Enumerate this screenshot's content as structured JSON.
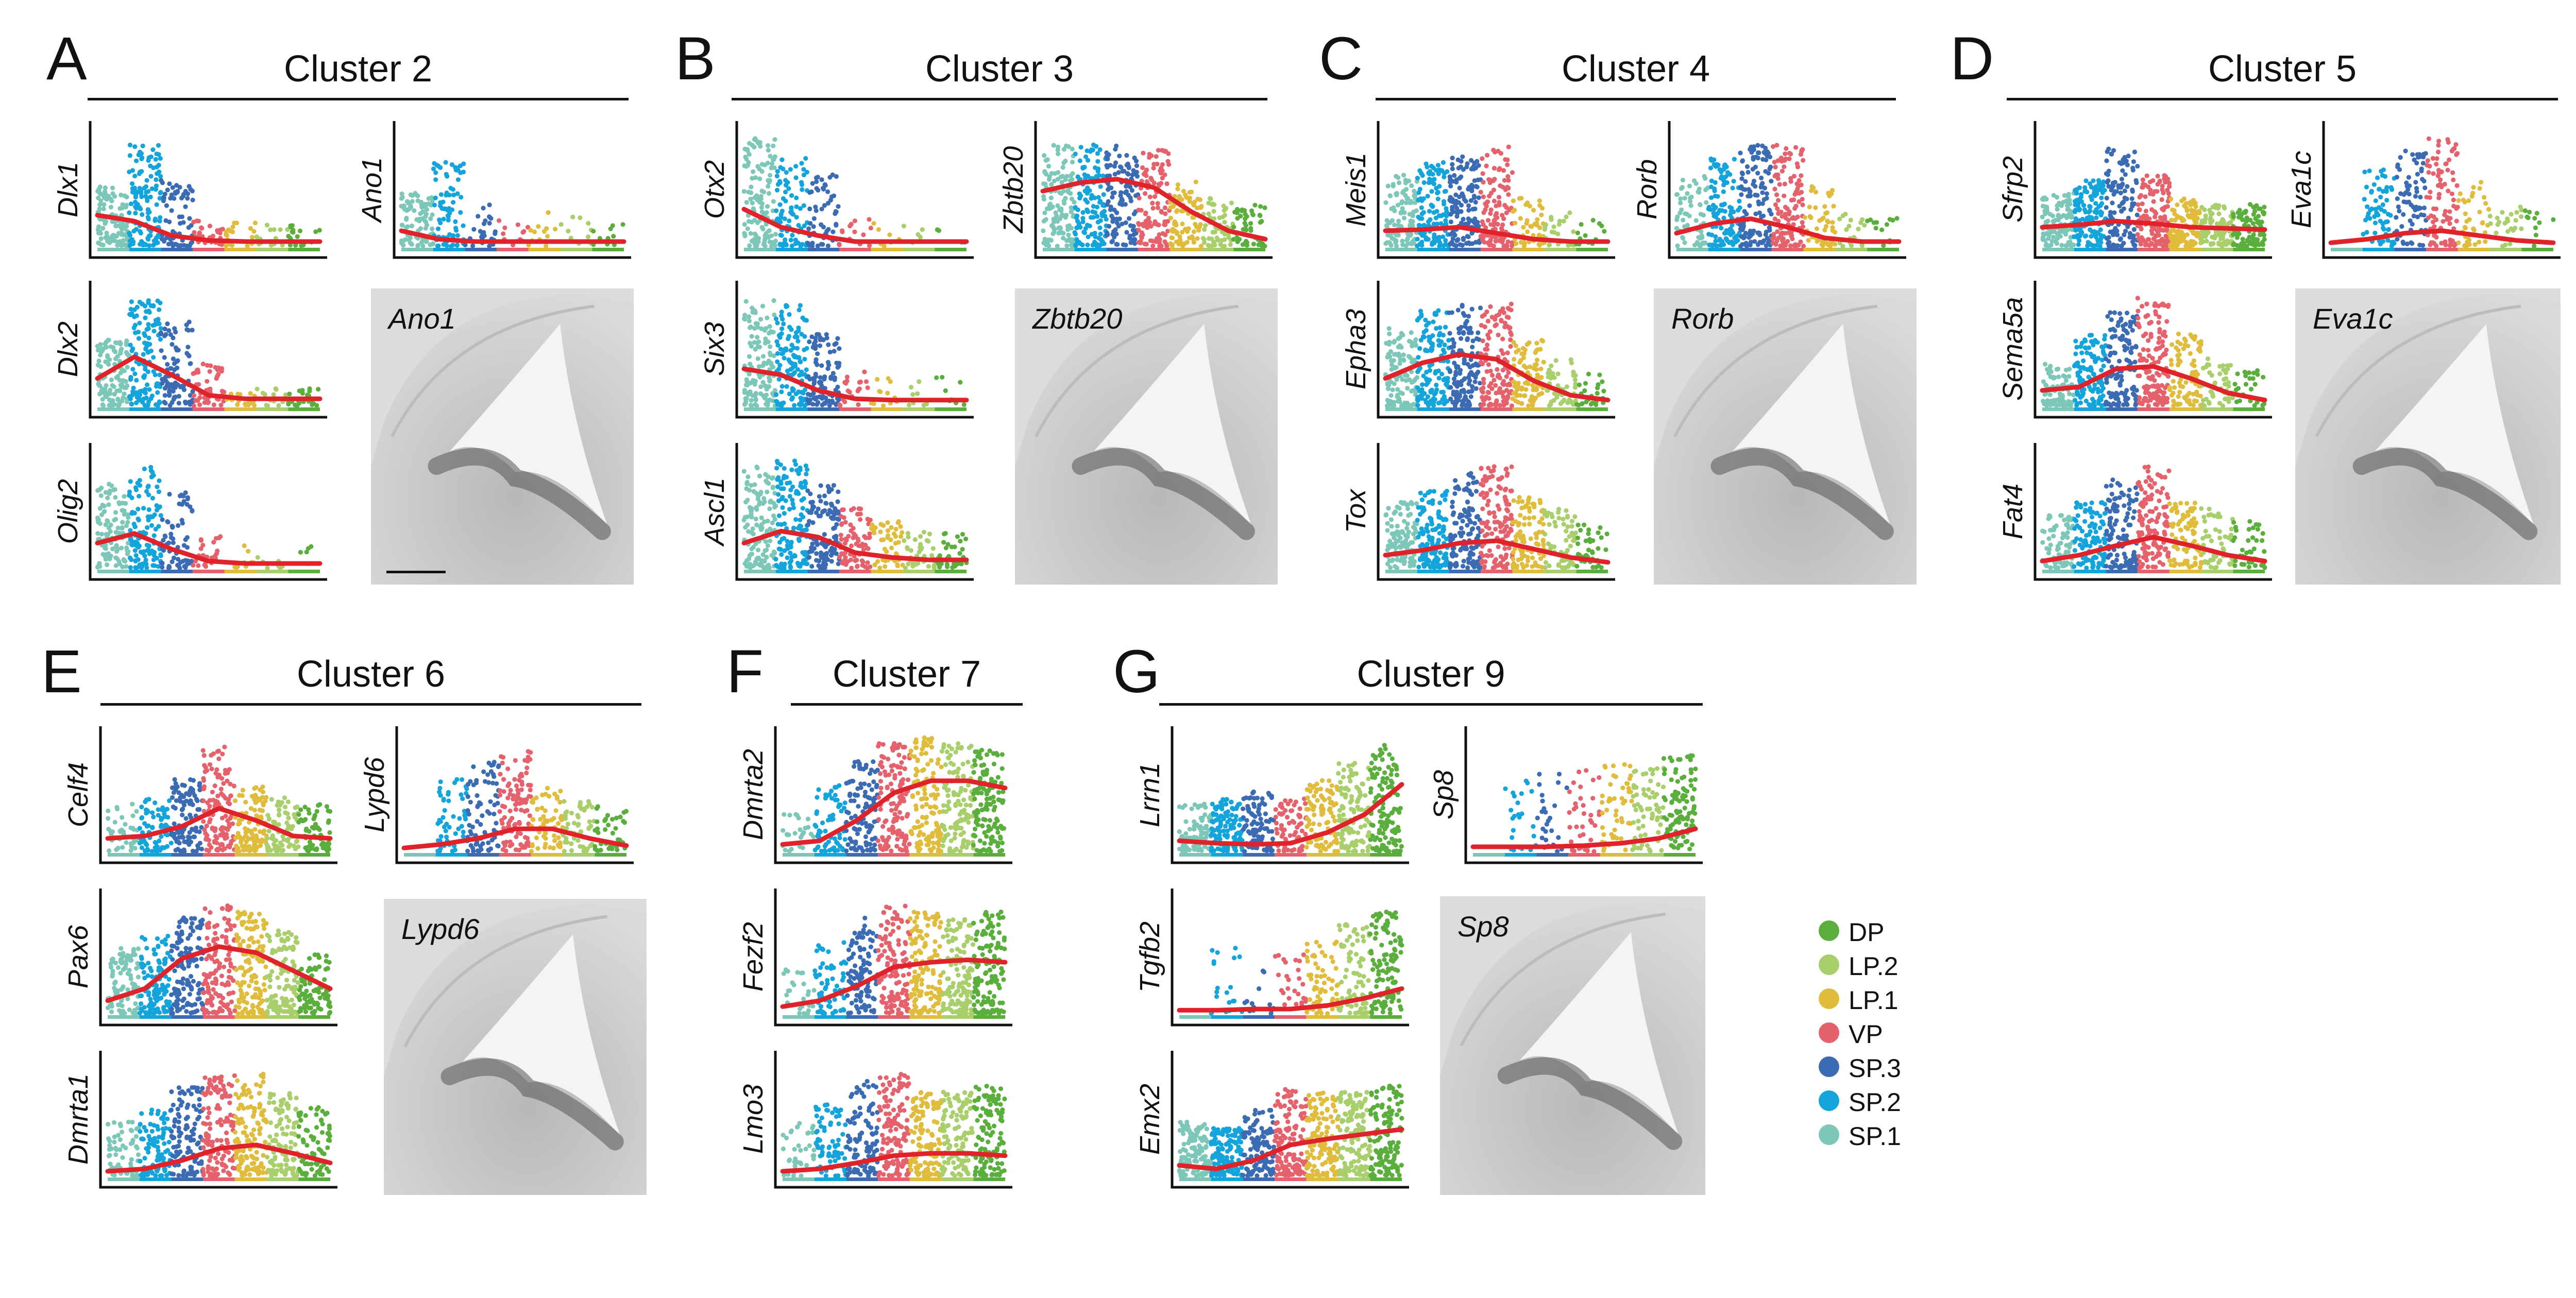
{
  "colors": {
    "DP": "#5aae3c",
    "LP.2": "#a8cf6b",
    "LP.1": "#e0bc3c",
    "VP": "#e5616c",
    "SP.3": "#3b6bb3",
    "SP.2": "#14a4dc",
    "SP.1": "#7dc7b8",
    "trend": "#e0232b",
    "axis": "#111111"
  },
  "legend": {
    "items": [
      {
        "label": "DP",
        "color": "#5aae3c"
      },
      {
        "label": "LP.2",
        "color": "#a8cf6b"
      },
      {
        "label": "LP.1",
        "color": "#e0bc3c"
      },
      {
        "label": "VP",
        "color": "#e5616c"
      },
      {
        "label": "SP.3",
        "color": "#3b6bb3"
      },
      {
        "label": "SP.2",
        "color": "#14a4dc"
      },
      {
        "label": "SP.1",
        "color": "#7dc7b8"
      }
    ]
  },
  "panels": [
    {
      "letter": "A",
      "title": "Cluster 2",
      "ish_label": "Ano1"
    },
    {
      "letter": "B",
      "title": "Cluster 3",
      "ish_label": "Zbtb20"
    },
    {
      "letter": "C",
      "title": "Cluster 4",
      "ish_label": "Rorb"
    },
    {
      "letter": "D",
      "title": "Cluster 5",
      "ish_label": "Eva1c"
    },
    {
      "letter": "E",
      "title": "Cluster 6",
      "ish_label": "Lypd6"
    },
    {
      "letter": "F",
      "title": "Cluster 7",
      "ish_label": ""
    },
    {
      "letter": "G",
      "title": "Cluster 9",
      "ish_label": "Sp8"
    }
  ],
  "chart_data": [
    {
      "type": "scatter",
      "panel": "A",
      "gene": "Dlx1",
      "category_order": [
        "SP.1",
        "SP.2",
        "SP.3",
        "VP",
        "LP.1",
        "LP.2",
        "DP"
      ],
      "density": [
        0.9,
        1.0,
        0.5,
        0.25,
        0.15,
        0.12,
        0.15
      ],
      "height": [
        0.5,
        0.85,
        0.55,
        0.25,
        0.2,
        0.18,
        0.18
      ],
      "trend": [
        0.25,
        0.2,
        0.08,
        0.04,
        0.03,
        0.03,
        0.03
      ]
    },
    {
      "type": "scatter",
      "panel": "A",
      "gene": "Ano1",
      "category_order": [
        "SP.1",
        "SP.2",
        "SP.3",
        "VP",
        "LP.1",
        "LP.2",
        "DP"
      ],
      "density": [
        0.7,
        0.6,
        0.2,
        0.1,
        0.1,
        0.08,
        0.08
      ],
      "height": [
        0.45,
        0.7,
        0.35,
        0.25,
        0.3,
        0.25,
        0.2
      ],
      "trend": [
        0.12,
        0.05,
        0.03,
        0.03,
        0.03,
        0.03,
        0.03
      ]
    },
    {
      "type": "scatter",
      "panel": "A",
      "gene": "Dlx2",
      "category_order": [
        "SP.1",
        "SP.2",
        "SP.3",
        "VP",
        "LP.1",
        "LP.2",
        "DP"
      ],
      "density": [
        0.9,
        1.0,
        0.7,
        0.35,
        0.15,
        0.12,
        0.2
      ],
      "height": [
        0.55,
        0.9,
        0.7,
        0.35,
        0.15,
        0.15,
        0.15
      ],
      "trend": [
        0.22,
        0.4,
        0.25,
        0.08,
        0.05,
        0.05,
        0.05
      ]
    },
    {
      "type": "scatter",
      "panel": "A",
      "gene": "Olig2",
      "category_order": [
        "SP.1",
        "SP.2",
        "SP.3",
        "VP",
        "LP.1",
        "LP.2",
        "DP"
      ],
      "density": [
        0.9,
        0.9,
        0.5,
        0.2,
        0.08,
        0.05,
        0.04
      ],
      "height": [
        0.7,
        0.85,
        0.65,
        0.3,
        0.2,
        0.2,
        0.2
      ],
      "trend": [
        0.2,
        0.28,
        0.15,
        0.05,
        0.03,
        0.03,
        0.03
      ]
    },
    {
      "type": "scatter",
      "panel": "B",
      "gene": "Otx2",
      "category_order": [
        "SP.1",
        "SP.2",
        "SP.3",
        "VP",
        "LP.1",
        "LP.2",
        "DP"
      ],
      "density": [
        1.0,
        0.7,
        0.45,
        0.1,
        0.05,
        0.04,
        0.04
      ],
      "height": [
        0.9,
        0.75,
        0.6,
        0.25,
        0.2,
        0.2,
        0.15
      ],
      "trend": [
        0.3,
        0.15,
        0.08,
        0.03,
        0.03,
        0.03,
        0.03
      ]
    },
    {
      "type": "scatter",
      "panel": "B",
      "gene": "Zbtb20",
      "category_order": [
        "SP.1",
        "SP.2",
        "SP.3",
        "VP",
        "LP.1",
        "LP.2",
        "DP"
      ],
      "density": [
        1.0,
        1.0,
        0.9,
        0.9,
        0.7,
        0.5,
        0.4
      ],
      "height": [
        0.85,
        0.85,
        0.85,
        0.8,
        0.55,
        0.4,
        0.35
      ],
      "trend": [
        0.45,
        0.52,
        0.55,
        0.48,
        0.28,
        0.12,
        0.05
      ]
    },
    {
      "type": "scatter",
      "panel": "B",
      "gene": "Six3",
      "category_order": [
        "SP.1",
        "SP.2",
        "SP.3",
        "VP",
        "LP.1",
        "LP.2",
        "DP"
      ],
      "density": [
        1.0,
        1.0,
        0.8,
        0.15,
        0.1,
        0.06,
        0.06
      ],
      "height": [
        0.9,
        0.85,
        0.6,
        0.3,
        0.25,
        0.25,
        0.25
      ],
      "trend": [
        0.3,
        0.25,
        0.12,
        0.05,
        0.04,
        0.04,
        0.04
      ]
    },
    {
      "type": "scatter",
      "panel": "B",
      "gene": "Ascl1",
      "category_order": [
        "SP.1",
        "SP.2",
        "SP.3",
        "VP",
        "LP.1",
        "LP.2",
        "DP"
      ],
      "density": [
        1.0,
        1.0,
        0.9,
        0.6,
        0.4,
        0.3,
        0.3
      ],
      "height": [
        0.85,
        0.9,
        0.7,
        0.5,
        0.4,
        0.3,
        0.3
      ],
      "trend": [
        0.2,
        0.3,
        0.25,
        0.12,
        0.08,
        0.06,
        0.06
      ]
    },
    {
      "type": "scatter",
      "panel": "C",
      "gene": "Meis1",
      "category_order": [
        "SP.1",
        "SP.2",
        "SP.3",
        "VP",
        "LP.1",
        "LP.2",
        "DP"
      ],
      "density": [
        0.8,
        1.0,
        1.0,
        0.9,
        0.4,
        0.2,
        0.1
      ],
      "height": [
        0.6,
        0.7,
        0.75,
        0.85,
        0.4,
        0.3,
        0.25
      ],
      "trend": [
        0.12,
        0.13,
        0.15,
        0.1,
        0.05,
        0.03,
        0.03
      ]
    },
    {
      "type": "scatter",
      "panel": "C",
      "gene": "Rorb",
      "category_order": [
        "SP.1",
        "SP.2",
        "SP.3",
        "VP",
        "LP.1",
        "LP.2",
        "DP"
      ],
      "density": [
        0.5,
        0.9,
        1.0,
        1.0,
        0.4,
        0.15,
        0.1
      ],
      "height": [
        0.6,
        0.75,
        0.85,
        0.85,
        0.5,
        0.3,
        0.25
      ],
      "trend": [
        0.1,
        0.18,
        0.22,
        0.15,
        0.06,
        0.03,
        0.03
      ]
    },
    {
      "type": "scatter",
      "panel": "C",
      "gene": "Epha3",
      "category_order": [
        "SP.1",
        "SP.2",
        "SP.3",
        "VP",
        "LP.1",
        "LP.2",
        "DP"
      ],
      "density": [
        0.9,
        1.0,
        1.0,
        1.0,
        0.7,
        0.4,
        0.2
      ],
      "height": [
        0.65,
        0.8,
        0.85,
        0.85,
        0.55,
        0.4,
        0.3
      ],
      "trend": [
        0.22,
        0.35,
        0.42,
        0.38,
        0.2,
        0.08,
        0.04
      ]
    },
    {
      "type": "scatter",
      "panel": "C",
      "gene": "Tox",
      "category_order": [
        "SP.1",
        "SP.2",
        "SP.3",
        "VP",
        "LP.1",
        "LP.2",
        "DP"
      ],
      "density": [
        0.8,
        1.0,
        1.0,
        1.0,
        0.7,
        0.5,
        0.3
      ],
      "height": [
        0.55,
        0.65,
        0.8,
        0.85,
        0.6,
        0.5,
        0.4
      ],
      "trend": [
        0.1,
        0.14,
        0.2,
        0.22,
        0.15,
        0.08,
        0.04
      ]
    },
    {
      "type": "scatter",
      "panel": "D",
      "gene": "Sfrp2",
      "category_order": [
        "SP.1",
        "SP.2",
        "SP.3",
        "VP",
        "LP.1",
        "LP.2",
        "DP"
      ],
      "density": [
        0.9,
        1.0,
        1.0,
        1.0,
        0.9,
        0.8,
        0.7
      ],
      "height": [
        0.45,
        0.55,
        0.85,
        0.6,
        0.4,
        0.35,
        0.35
      ],
      "trend": [
        0.15,
        0.17,
        0.2,
        0.18,
        0.15,
        0.14,
        0.13
      ]
    },
    {
      "type": "scatter",
      "panel": "D",
      "gene": "Eva1c",
      "category_order": [
        "SP.1",
        "SP.2",
        "SP.3",
        "VP",
        "LP.1",
        "LP.2",
        "DP"
      ],
      "density": [
        0.0,
        0.5,
        0.6,
        0.7,
        0.3,
        0.2,
        0.1
      ],
      "height": [
        0.0,
        0.65,
        0.8,
        0.9,
        0.55,
        0.35,
        0.3
      ],
      "trend": [
        0.02,
        0.05,
        0.1,
        0.12,
        0.08,
        0.04,
        0.02
      ]
    },
    {
      "type": "scatter",
      "panel": "D",
      "gene": "Sema5a",
      "category_order": [
        "SP.1",
        "SP.2",
        "SP.3",
        "VP",
        "LP.1",
        "LP.2",
        "DP"
      ],
      "density": [
        0.6,
        0.9,
        1.0,
        1.0,
        0.7,
        0.4,
        0.2
      ],
      "height": [
        0.35,
        0.6,
        0.8,
        0.9,
        0.6,
        0.4,
        0.3
      ],
      "trend": [
        0.12,
        0.15,
        0.3,
        0.32,
        0.22,
        0.1,
        0.04
      ]
    },
    {
      "type": "scatter",
      "panel": "D",
      "gene": "Fat4",
      "category_order": [
        "SP.1",
        "SP.2",
        "SP.3",
        "VP",
        "LP.1",
        "LP.2",
        "DP"
      ],
      "density": [
        0.6,
        0.8,
        0.9,
        1.0,
        0.6,
        0.4,
        0.3
      ],
      "height": [
        0.45,
        0.55,
        0.75,
        0.85,
        0.6,
        0.5,
        0.4
      ],
      "trend": [
        0.05,
        0.1,
        0.18,
        0.25,
        0.18,
        0.1,
        0.05
      ]
    },
    {
      "type": "scatter",
      "panel": "E",
      "gene": "Celf4",
      "category_order": [
        "SP.1",
        "SP.2",
        "SP.3",
        "VP",
        "LP.1",
        "LP.2",
        "DP"
      ],
      "density": [
        0.3,
        0.6,
        0.8,
        1.0,
        0.8,
        0.6,
        0.5
      ],
      "height": [
        0.4,
        0.45,
        0.6,
        0.9,
        0.55,
        0.45,
        0.4
      ],
      "trend": [
        0.1,
        0.12,
        0.2,
        0.35,
        0.25,
        0.12,
        0.1
      ]
    },
    {
      "type": "scatter",
      "panel": "E",
      "gene": "Lypd6",
      "category_order": [
        "SP.1",
        "SP.2",
        "SP.3",
        "VP",
        "LP.1",
        "LP.2",
        "DP"
      ],
      "density": [
        0.0,
        0.4,
        0.6,
        0.8,
        0.5,
        0.4,
        0.3
      ],
      "height": [
        0.0,
        0.6,
        0.75,
        0.9,
        0.55,
        0.45,
        0.4
      ],
      "trend": [
        0.02,
        0.05,
        0.1,
        0.18,
        0.18,
        0.1,
        0.04
      ]
    },
    {
      "type": "scatter",
      "panel": "E",
      "gene": "Pax6",
      "category_order": [
        "SP.1",
        "SP.2",
        "SP.3",
        "VP",
        "LP.1",
        "LP.2",
        "DP"
      ],
      "density": [
        0.7,
        0.9,
        1.0,
        1.0,
        1.0,
        0.9,
        0.7
      ],
      "height": [
        0.55,
        0.65,
        0.8,
        0.9,
        0.85,
        0.7,
        0.5
      ],
      "trend": [
        0.1,
        0.2,
        0.45,
        0.55,
        0.5,
        0.35,
        0.2
      ]
    },
    {
      "type": "scatter",
      "panel": "E",
      "gene": "Dmrta1",
      "category_order": [
        "SP.1",
        "SP.2",
        "SP.3",
        "VP",
        "LP.1",
        "LP.2",
        "DP"
      ],
      "density": [
        0.5,
        0.7,
        0.9,
        1.0,
        1.0,
        0.8,
        0.6
      ],
      "height": [
        0.45,
        0.55,
        0.75,
        0.85,
        0.85,
        0.7,
        0.6
      ],
      "trend": [
        0.03,
        0.05,
        0.12,
        0.22,
        0.25,
        0.18,
        0.1
      ]
    },
    {
      "type": "scatter",
      "panel": "F",
      "gene": "Dmrta2",
      "category_order": [
        "SP.1",
        "SP.2",
        "SP.3",
        "VP",
        "LP.1",
        "LP.2",
        "DP"
      ],
      "density": [
        0.2,
        0.5,
        0.8,
        1.0,
        1.0,
        1.0,
        1.0
      ],
      "height": [
        0.35,
        0.55,
        0.75,
        0.9,
        0.95,
        0.9,
        0.85
      ],
      "trend": [
        0.05,
        0.08,
        0.25,
        0.48,
        0.58,
        0.58,
        0.52
      ]
    },
    {
      "type": "scatter",
      "panel": "F",
      "gene": "Fezf2",
      "category_order": [
        "SP.1",
        "SP.2",
        "SP.3",
        "VP",
        "LP.1",
        "LP.2",
        "DP"
      ],
      "density": [
        0.2,
        0.5,
        0.8,
        1.0,
        1.0,
        1.0,
        1.0
      ],
      "height": [
        0.4,
        0.6,
        0.8,
        0.9,
        0.85,
        0.8,
        0.85
      ],
      "trend": [
        0.05,
        0.1,
        0.22,
        0.38,
        0.42,
        0.44,
        0.42
      ]
    },
    {
      "type": "scatter",
      "panel": "F",
      "gene": "Lmo3",
      "category_order": [
        "SP.1",
        "SP.2",
        "SP.3",
        "VP",
        "LP.1",
        "LP.2",
        "DP"
      ],
      "density": [
        0.3,
        0.6,
        0.8,
        1.0,
        1.0,
        0.9,
        0.9
      ],
      "height": [
        0.45,
        0.6,
        0.8,
        0.85,
        0.7,
        0.7,
        0.75
      ],
      "trend": [
        0.03,
        0.05,
        0.1,
        0.16,
        0.18,
        0.18,
        0.16
      ]
    },
    {
      "type": "scatter",
      "panel": "G",
      "gene": "Lrrn1",
      "category_order": [
        "SP.1",
        "SP.2",
        "SP.3",
        "VP",
        "LP.1",
        "LP.2",
        "DP"
      ],
      "density": [
        0.6,
        0.9,
        0.7,
        0.5,
        0.7,
        0.9,
        1.0
      ],
      "height": [
        0.4,
        0.45,
        0.5,
        0.45,
        0.6,
        0.75,
        0.9
      ],
      "trend": [
        0.08,
        0.06,
        0.05,
        0.06,
        0.15,
        0.3,
        0.55
      ]
    },
    {
      "type": "scatter",
      "panel": "G",
      "gene": "Sp8",
      "category_order": [
        "SP.1",
        "SP.2",
        "SP.3",
        "VP",
        "LP.1",
        "LP.2",
        "DP"
      ],
      "density": [
        0.0,
        0.2,
        0.2,
        0.3,
        0.4,
        0.5,
        0.8
      ],
      "height": [
        0.0,
        0.6,
        0.65,
        0.7,
        0.75,
        0.7,
        0.8
      ],
      "trend": [
        0.03,
        0.03,
        0.03,
        0.04,
        0.06,
        0.1,
        0.18
      ]
    },
    {
      "type": "scatter",
      "panel": "G",
      "gene": "Tgfb2",
      "category_order": [
        "SP.1",
        "SP.2",
        "SP.3",
        "VP",
        "LP.1",
        "LP.2",
        "DP"
      ],
      "density": [
        0.0,
        0.15,
        0.1,
        0.2,
        0.5,
        0.6,
        0.9
      ],
      "height": [
        0.0,
        0.6,
        0.55,
        0.5,
        0.6,
        0.75,
        0.85
      ],
      "trend": [
        0.02,
        0.02,
        0.03,
        0.03,
        0.06,
        0.12,
        0.2
      ]
    },
    {
      "type": "scatter",
      "panel": "G",
      "gene": "Emx2",
      "category_order": [
        "SP.1",
        "SP.2",
        "SP.3",
        "VP",
        "LP.1",
        "LP.2",
        "DP"
      ],
      "density": [
        0.9,
        1.0,
        0.9,
        1.0,
        1.0,
        1.0,
        1.0
      ],
      "height": [
        0.45,
        0.4,
        0.55,
        0.75,
        0.7,
        0.7,
        0.75
      ],
      "trend": [
        0.08,
        0.05,
        0.12,
        0.25,
        0.3,
        0.34,
        0.38
      ]
    }
  ]
}
